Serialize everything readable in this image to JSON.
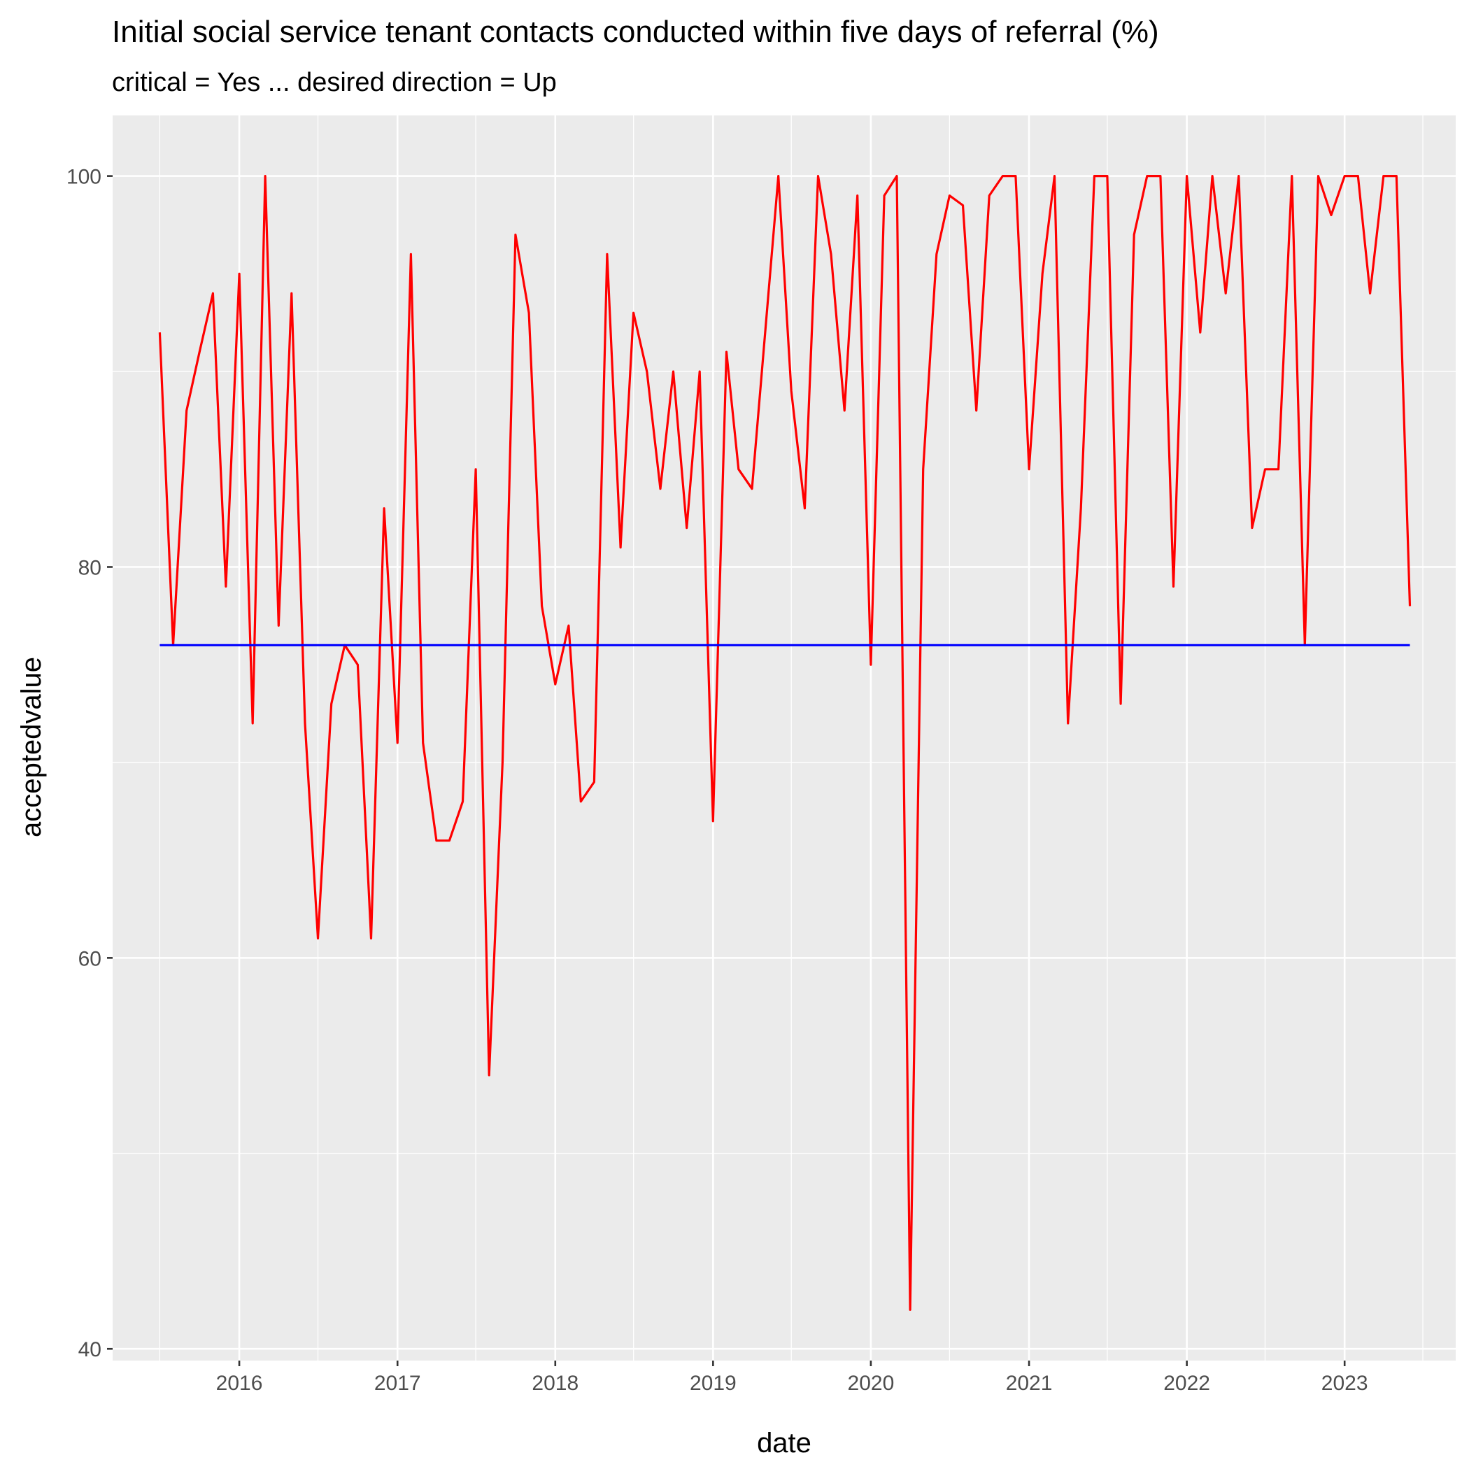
{
  "chart_data": {
    "type": "line",
    "title": "Initial social service tenant contacts conducted within five days of referral (%)",
    "subtitle": "critical = Yes ... desired direction = Up",
    "xlabel": "date",
    "ylabel": "acceptedvalue",
    "xlim": [
      "2015-03-14",
      "2023-09-15"
    ],
    "ylim": [
      39.4,
      103.1
    ],
    "x_ticks": [
      "2016",
      "2017",
      "2018",
      "2019",
      "2020",
      "2021",
      "2022",
      "2023"
    ],
    "y_ticks": [
      40,
      60,
      80,
      100
    ],
    "grid": true,
    "legend": "none",
    "colors": {
      "panel": "#EBEBEB",
      "grid": "#FFFFFF",
      "series": "#FF0000",
      "target": "#0000FF"
    },
    "series": [
      {
        "color": "#FF0000",
        "points": [
          [
            "2015-07-01",
            92
          ],
          [
            "2015-08-01",
            76
          ],
          [
            "2015-09-01",
            88
          ],
          [
            "2015-10-01",
            91
          ],
          [
            "2015-11-01",
            94
          ],
          [
            "2015-12-01",
            79
          ],
          [
            "2016-01-01",
            95
          ],
          [
            "2016-02-01",
            72
          ],
          [
            "2016-03-01",
            100
          ],
          [
            "2016-04-01",
            77
          ],
          [
            "2016-05-01",
            94
          ],
          [
            "2016-06-01",
            72
          ],
          [
            "2016-07-01",
            61
          ],
          [
            "2016-08-01",
            73
          ],
          [
            "2016-09-01",
            76
          ],
          [
            "2016-10-01",
            75
          ],
          [
            "2016-11-01",
            61
          ],
          [
            "2016-12-01",
            83
          ],
          [
            "2017-01-01",
            71
          ],
          [
            "2017-02-01",
            96
          ],
          [
            "2017-03-01",
            71
          ],
          [
            "2017-04-01",
            66
          ],
          [
            "2017-05-01",
            66
          ],
          [
            "2017-06-01",
            68
          ],
          [
            "2017-07-01",
            85
          ],
          [
            "2017-08-01",
            54
          ],
          [
            "2017-09-01",
            70
          ],
          [
            "2017-10-01",
            97
          ],
          [
            "2017-11-01",
            93
          ],
          [
            "2017-12-01",
            78
          ],
          [
            "2018-01-01",
            74
          ],
          [
            "2018-02-01",
            77
          ],
          [
            "2018-03-01",
            68
          ],
          [
            "2018-04-01",
            69
          ],
          [
            "2018-05-01",
            96
          ],
          [
            "2018-06-01",
            81
          ],
          [
            "2018-07-01",
            93
          ],
          [
            "2018-08-01",
            90
          ],
          [
            "2018-09-01",
            84
          ],
          [
            "2018-10-01",
            90
          ],
          [
            "2018-11-01",
            82
          ],
          [
            "2018-12-01",
            90
          ],
          [
            "2019-01-01",
            67
          ],
          [
            "2019-02-01",
            91
          ],
          [
            "2019-03-01",
            85
          ],
          [
            "2019-04-01",
            84
          ],
          [
            "2019-06-01",
            100
          ],
          [
            "2019-07-01",
            89
          ],
          [
            "2019-08-01",
            83
          ],
          [
            "2019-09-01",
            100
          ],
          [
            "2019-10-01",
            96
          ],
          [
            "2019-11-01",
            88
          ],
          [
            "2019-12-01",
            99
          ],
          [
            "2020-01-01",
            75
          ],
          [
            "2020-02-01",
            99
          ],
          [
            "2020-03-01",
            100
          ],
          [
            "2020-04-01",
            42
          ],
          [
            "2020-05-01",
            85
          ],
          [
            "2020-06-01",
            96
          ],
          [
            "2020-07-01",
            99
          ],
          [
            "2020-08-01",
            98.5
          ],
          [
            "2020-09-01",
            88
          ],
          [
            "2020-10-01",
            99
          ],
          [
            "2020-11-01",
            100
          ],
          [
            "2020-12-01",
            100
          ],
          [
            "2021-01-01",
            85
          ],
          [
            "2021-02-01",
            95
          ],
          [
            "2021-03-01",
            100
          ],
          [
            "2021-04-01",
            72
          ],
          [
            "2021-05-01",
            83
          ],
          [
            "2021-06-01",
            100
          ],
          [
            "2021-07-01",
            100
          ],
          [
            "2021-08-01",
            73
          ],
          [
            "2021-09-01",
            97
          ],
          [
            "2021-10-01",
            100
          ],
          [
            "2021-11-01",
            100
          ],
          [
            "2021-12-01",
            79
          ],
          [
            "2022-01-01",
            100
          ],
          [
            "2022-02-01",
            92
          ],
          [
            "2022-03-01",
            100
          ],
          [
            "2022-04-01",
            94
          ],
          [
            "2022-05-01",
            100
          ],
          [
            "2022-06-01",
            82
          ],
          [
            "2022-07-01",
            85
          ],
          [
            "2022-08-01",
            85
          ],
          [
            "2022-09-01",
            100
          ],
          [
            "2022-10-01",
            76
          ],
          [
            "2022-11-01",
            100
          ],
          [
            "2022-12-01",
            98
          ],
          [
            "2023-01-01",
            100
          ],
          [
            "2023-02-01",
            100
          ],
          [
            "2023-03-01",
            94
          ],
          [
            "2023-04-01",
            100
          ],
          [
            "2023-05-01",
            100
          ],
          [
            "2023-06-01",
            78
          ]
        ]
      },
      {
        "color": "#0000FF",
        "points": [
          [
            "2015-07-01",
            76
          ],
          [
            "2023-06-01",
            76
          ]
        ]
      }
    ]
  }
}
